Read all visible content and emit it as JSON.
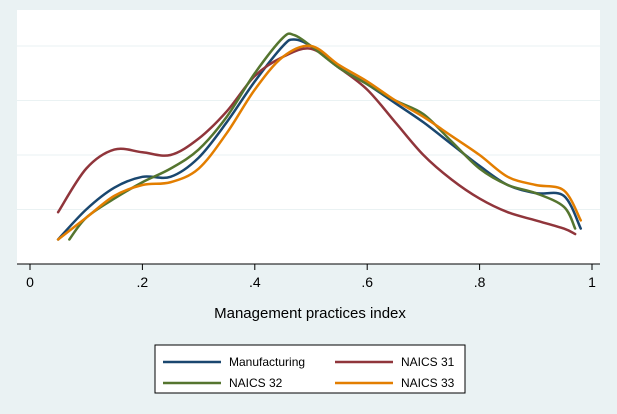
{
  "chart_data": {
    "type": "line",
    "title": "",
    "xlabel": "Management practices index",
    "ylabel": "",
    "xlim": [
      0,
      1
    ],
    "xticks": [
      {
        "value": 0,
        "label": "0"
      },
      {
        "value": 0.2,
        "label": ".2"
      },
      {
        "value": 0.4,
        "label": ".4"
      },
      {
        "value": 0.6,
        "label": ".6"
      },
      {
        "value": 0.8,
        "label": ".8"
      },
      {
        "value": 1,
        "label": "1"
      }
    ],
    "ylim": [
      0,
      4.2
    ],
    "ygrid": [
      1,
      2,
      3,
      4
    ],
    "grid": true,
    "legend_position": "bottom",
    "series": [
      {
        "name": "Manufacturing",
        "color": "#1a476f",
        "points": [
          [
            0.05,
            0.45
          ],
          [
            0.1,
            1.0
          ],
          [
            0.15,
            1.4
          ],
          [
            0.2,
            1.6
          ],
          [
            0.25,
            1.6
          ],
          [
            0.3,
            1.95
          ],
          [
            0.35,
            2.6
          ],
          [
            0.4,
            3.35
          ],
          [
            0.45,
            4.0
          ],
          [
            0.47,
            4.12
          ],
          [
            0.5,
            4.0
          ],
          [
            0.55,
            3.6
          ],
          [
            0.6,
            3.3
          ],
          [
            0.65,
            2.95
          ],
          [
            0.7,
            2.6
          ],
          [
            0.75,
            2.2
          ],
          [
            0.8,
            1.8
          ],
          [
            0.85,
            1.45
          ],
          [
            0.9,
            1.3
          ],
          [
            0.95,
            1.25
          ],
          [
            0.98,
            0.65
          ]
        ]
      },
      {
        "name": "NAICS 31",
        "color": "#90353b",
        "points": [
          [
            0.05,
            0.95
          ],
          [
            0.1,
            1.75
          ],
          [
            0.15,
            2.1
          ],
          [
            0.2,
            2.05
          ],
          [
            0.25,
            2.0
          ],
          [
            0.3,
            2.3
          ],
          [
            0.35,
            2.8
          ],
          [
            0.4,
            3.45
          ],
          [
            0.45,
            3.8
          ],
          [
            0.5,
            3.95
          ],
          [
            0.55,
            3.6
          ],
          [
            0.6,
            3.2
          ],
          [
            0.65,
            2.6
          ],
          [
            0.7,
            2.0
          ],
          [
            0.75,
            1.55
          ],
          [
            0.8,
            1.2
          ],
          [
            0.85,
            0.95
          ],
          [
            0.9,
            0.8
          ],
          [
            0.95,
            0.65
          ],
          [
            0.97,
            0.55
          ]
        ]
      },
      {
        "name": "NAICS 32",
        "color": "#55752f",
        "points": [
          [
            0.07,
            0.45
          ],
          [
            0.1,
            0.85
          ],
          [
            0.15,
            1.2
          ],
          [
            0.2,
            1.5
          ],
          [
            0.25,
            1.75
          ],
          [
            0.3,
            2.1
          ],
          [
            0.35,
            2.7
          ],
          [
            0.4,
            3.5
          ],
          [
            0.45,
            4.15
          ],
          [
            0.47,
            4.2
          ],
          [
            0.5,
            4.0
          ],
          [
            0.55,
            3.6
          ],
          [
            0.6,
            3.3
          ],
          [
            0.65,
            3.0
          ],
          [
            0.7,
            2.75
          ],
          [
            0.75,
            2.25
          ],
          [
            0.8,
            1.75
          ],
          [
            0.85,
            1.45
          ],
          [
            0.9,
            1.3
          ],
          [
            0.95,
            1.05
          ],
          [
            0.97,
            0.65
          ]
        ]
      },
      {
        "name": "NAICS 33",
        "color": "#e37e00",
        "points": [
          [
            0.05,
            0.45
          ],
          [
            0.1,
            0.85
          ],
          [
            0.15,
            1.25
          ],
          [
            0.2,
            1.45
          ],
          [
            0.25,
            1.5
          ],
          [
            0.3,
            1.75
          ],
          [
            0.35,
            2.4
          ],
          [
            0.4,
            3.2
          ],
          [
            0.45,
            3.8
          ],
          [
            0.5,
            4.0
          ],
          [
            0.55,
            3.65
          ],
          [
            0.6,
            3.35
          ],
          [
            0.65,
            3.0
          ],
          [
            0.7,
            2.7
          ],
          [
            0.75,
            2.35
          ],
          [
            0.8,
            2.0
          ],
          [
            0.85,
            1.6
          ],
          [
            0.9,
            1.45
          ],
          [
            0.95,
            1.35
          ],
          [
            0.98,
            0.8
          ]
        ]
      }
    ]
  }
}
